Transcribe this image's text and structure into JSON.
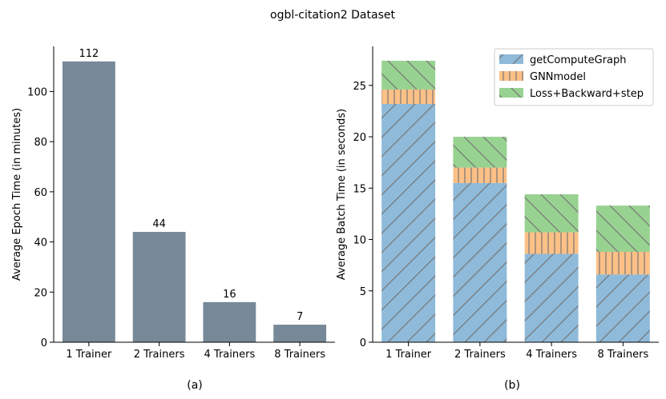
{
  "suptitle": "ogbl-citation2 Dataset",
  "colors": {
    "bar_a": "#778899",
    "getComputeGraph": "#8fbad9",
    "GNNmodel": "#fdc086",
    "Loss+Backward+step": "#98d291",
    "hatch": "#777777"
  },
  "chart_data": [
    {
      "type": "bar",
      "panel_label": "(a)",
      "categories": [
        "1 Trainer",
        "2 Trainers",
        "4 Trainers",
        "8 Trainers"
      ],
      "values": [
        112,
        44,
        16,
        7
      ],
      "value_labels": [
        "112",
        "44",
        "16",
        "7"
      ],
      "ylabel": "Average Epoch Time (in minutes)",
      "xlabel": "",
      "ylim": [
        0,
        118
      ],
      "yticks": [
        0,
        20,
        40,
        60,
        80,
        100
      ],
      "grid": false
    },
    {
      "type": "bar",
      "stacked": true,
      "panel_label": "(b)",
      "categories": [
        "1 Trainer",
        "2 Trainers",
        "4 Trainers",
        "8 Trainers"
      ],
      "series": [
        {
          "name": "getComputeGraph",
          "values": [
            23.2,
            15.5,
            8.6,
            6.6
          ],
          "hatch": "diagonal"
        },
        {
          "name": "GNNmodel",
          "values": [
            1.4,
            1.5,
            2.1,
            2.2
          ],
          "hatch": "vertical"
        },
        {
          "name": "Loss+Backward+step",
          "values": [
            2.8,
            3.0,
            3.7,
            4.5
          ],
          "hatch": "backdiagonal"
        }
      ],
      "ylabel": "Average Batch Time (in seconds)",
      "xlabel": "",
      "ylim": [
        0,
        28.8
      ],
      "yticks": [
        0,
        5,
        10,
        15,
        20,
        25
      ],
      "legend": "top-right",
      "grid": false
    }
  ]
}
